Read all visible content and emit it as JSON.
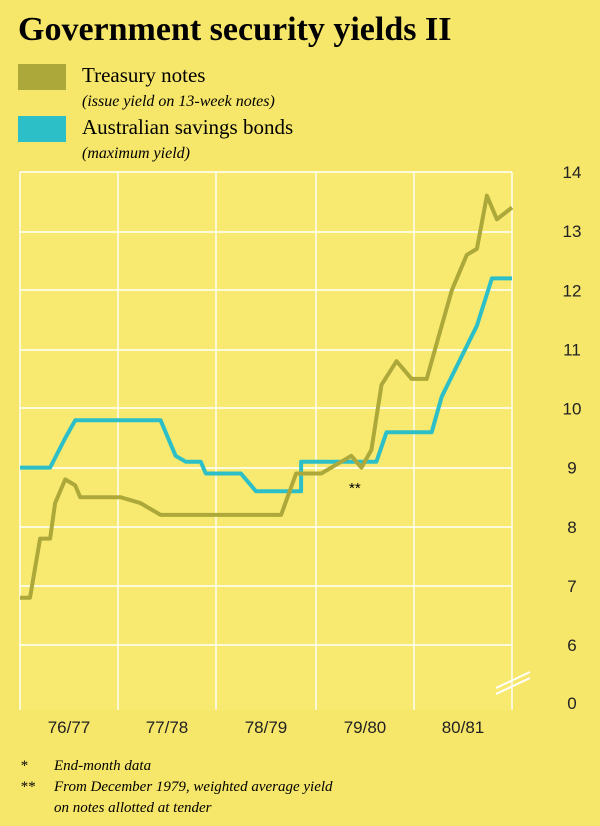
{
  "colors": {
    "background": "#F6E66A",
    "plot_background": "#F8EA70",
    "grid": "#FFFFFF",
    "treasury": "#ADA83A",
    "bonds": "#2DBFC7",
    "text": "#1c1c1c"
  },
  "chart_data": {
    "type": "line",
    "title": "Government security yields II",
    "x_tick_labels": [
      "76/77",
      "77/78",
      "78/79",
      "79/80",
      "80/81"
    ],
    "y_ticks": [
      0,
      6,
      7,
      8,
      9,
      10,
      11,
      12,
      13,
      14
    ],
    "ylim": [
      6,
      14
    ],
    "axis_break": true,
    "grid": true,
    "legend_position": "top-left",
    "annotation": "**",
    "series": [
      {
        "name": "Treasury notes",
        "sub": "(issue yield on 13-week notes)",
        "color": "#ADA83A",
        "x": [
          0,
          0.1,
          0.2,
          0.3,
          0.35,
          0.45,
          0.55,
          0.6,
          0.7,
          0.8,
          0.9,
          1.0,
          1.2,
          1.4,
          1.6,
          1.8,
          2.0,
          2.2,
          2.4,
          2.6,
          2.75,
          2.8,
          3.0,
          3.2,
          3.3,
          3.4,
          3.5,
          3.6,
          3.75,
          3.8,
          3.9,
          4.05,
          4.1,
          4.2,
          4.3,
          4.45,
          4.55,
          4.65,
          4.75,
          4.9
        ],
        "values": [
          6.8,
          6.8,
          7.8,
          7.8,
          8.4,
          8.8,
          8.7,
          8.5,
          8.5,
          8.5,
          8.5,
          8.5,
          8.4,
          8.2,
          8.2,
          8.2,
          8.2,
          8.2,
          8.2,
          8.2,
          8.9,
          8.9,
          8.9,
          9.1,
          9.2,
          9.0,
          9.3,
          10.4,
          10.8,
          10.7,
          10.5,
          10.5,
          10.8,
          11.4,
          12.0,
          12.6,
          12.7,
          13.6,
          13.2,
          13.4
        ]
      },
      {
        "name": "Australian savings bonds",
        "sub": "(maximum yield)",
        "color": "#2DBFC7",
        "x": [
          0,
          0.3,
          0.45,
          0.55,
          0.6,
          1.4,
          1.55,
          1.65,
          1.8,
          1.85,
          2.2,
          2.35,
          2.8,
          2.8,
          3.55,
          3.65,
          4.1,
          4.2,
          4.55,
          4.7,
          4.9
        ],
        "values": [
          9.0,
          9.0,
          9.5,
          9.8,
          9.8,
          9.8,
          9.2,
          9.1,
          9.1,
          8.9,
          8.9,
          8.6,
          8.6,
          9.1,
          9.1,
          9.6,
          9.6,
          10.2,
          11.4,
          12.2,
          12.2
        ]
      }
    ]
  },
  "footnotes": [
    {
      "mark": "*",
      "text": "End-month data"
    },
    {
      "mark": "**",
      "text": "From December 1979, weighted average yield"
    },
    {
      "mark": "",
      "text": "on notes allotted at tender"
    }
  ]
}
